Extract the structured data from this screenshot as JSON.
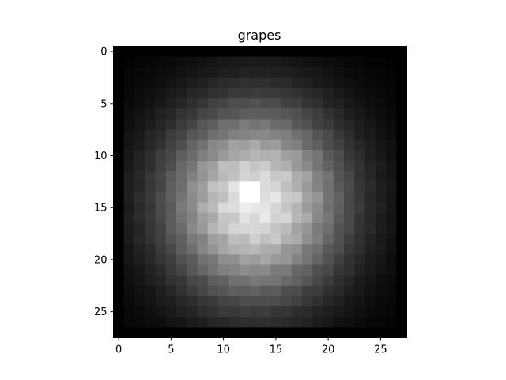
{
  "chart_data": {
    "type": "heatmap",
    "title": "grapes",
    "colormap": "gray",
    "rows": 28,
    "cols": 28,
    "xlim": [
      -0.5,
      27.5
    ],
    "ylim": [
      27.5,
      -0.5
    ],
    "x_ticks": [
      0,
      5,
      10,
      15,
      20,
      25
    ],
    "y_ticks": [
      0,
      5,
      10,
      15,
      20,
      25
    ],
    "value_range": [
      0,
      1
    ],
    "pattern": {
      "center_row": 14.5,
      "center_col": 13.0,
      "spread_row": 8.6,
      "spread_col": 8.0,
      "peak_value": 1.0,
      "peak_cells": [
        [
          13,
          13
        ],
        [
          14,
          13
        ],
        [
          13,
          12
        ],
        [
          14,
          12
        ]
      ],
      "frame_value": 0.0,
      "frame_border_rows": [
        0,
        27
      ],
      "frame_border_cols": [
        0,
        27
      ]
    }
  }
}
